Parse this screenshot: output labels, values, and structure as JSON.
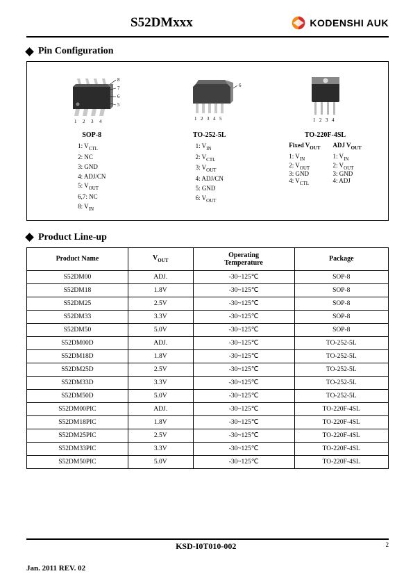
{
  "header": {
    "title": "S52DMxxx",
    "brand": "KODENSHI AUK",
    "logo_colors": {
      "orange": "#f08c1c",
      "red": "#d32f2f"
    }
  },
  "sections": {
    "pin_config": "Pin Configuration",
    "lineup": "Product Line-up"
  },
  "packages": {
    "sop8": {
      "name": "SOP-8",
      "pins": [
        "1: V_CTL",
        "2: NC",
        "3: GND",
        "4: ADJ/CN",
        "5: V_OUT",
        "6,7: NC",
        "8: V_IN"
      ]
    },
    "to252": {
      "name": "TO-252-5L",
      "pins": [
        "1: V_IN",
        "2: V_CTL",
        "3: V_OUT",
        "4: ADJ/CN",
        "5: GND",
        "6: V_OUT"
      ]
    },
    "to220": {
      "name": "TO-220F-4SL",
      "fixed_head": "Fixed V_OUT",
      "adj_head": "ADJ V_OUT",
      "fixed": [
        "1: V_IN",
        "2: V_OUT",
        "3: GND",
        "4: V_CTL"
      ],
      "adj": [
        "1: V_IN",
        "2: V_OUT",
        "3: GND",
        "4: ADJ"
      ]
    }
  },
  "table": {
    "columns": [
      "Product Name",
      "V_OUT",
      "Operating Temperature",
      "Package"
    ],
    "col_widths": [
      "28%",
      "18%",
      "28%",
      "26%"
    ],
    "rows": [
      [
        "S52DM00",
        "ADJ.",
        "-30~125℃",
        "SOP-8"
      ],
      [
        "S52DM18",
        "1.8V",
        "-30~125℃",
        "SOP-8"
      ],
      [
        "S52DM25",
        "2.5V",
        "-30~125℃",
        "SOP-8"
      ],
      [
        "S52DM33",
        "3.3V",
        "-30~125℃",
        "SOP-8"
      ],
      [
        "S52DM50",
        "5.0V",
        "-30~125℃",
        "SOP-8"
      ],
      [
        "S52DM00D",
        "ADJ.",
        "-30~125℃",
        "TO-252-5L"
      ],
      [
        "S52DM18D",
        "1.8V",
        "-30~125℃",
        "TO-252-5L"
      ],
      [
        "S52DM25D",
        "2.5V",
        "-30~125℃",
        "TO-252-5L"
      ],
      [
        "S52DM33D",
        "3.3V",
        "-30~125℃",
        "TO-252-5L"
      ],
      [
        "S52DM50D",
        "5.0V",
        "-30~125℃",
        "TO-252-5L"
      ],
      [
        "S52DM00PIC",
        "ADJ.",
        "-30~125℃",
        "TO-220F-4SL"
      ],
      [
        "S52DM18PIC",
        "1.8V",
        "-30~125℃",
        "TO-220F-4SL"
      ],
      [
        "S52DM25PIC",
        "2.5V",
        "-30~125℃",
        "TO-220F-4SL"
      ],
      [
        "S52DM33PIC",
        "3.3V",
        "-30~125℃",
        "TO-220F-4SL"
      ],
      [
        "S52DM50PIC",
        "5.0V",
        "-30~125℃",
        "TO-220F-4SL"
      ]
    ],
    "group_end_rows": [
      4,
      9
    ]
  },
  "footer": {
    "doc_id": "KSD-I0T010-002",
    "page": "2",
    "revision": "Jan. 2011 REV. 02"
  }
}
